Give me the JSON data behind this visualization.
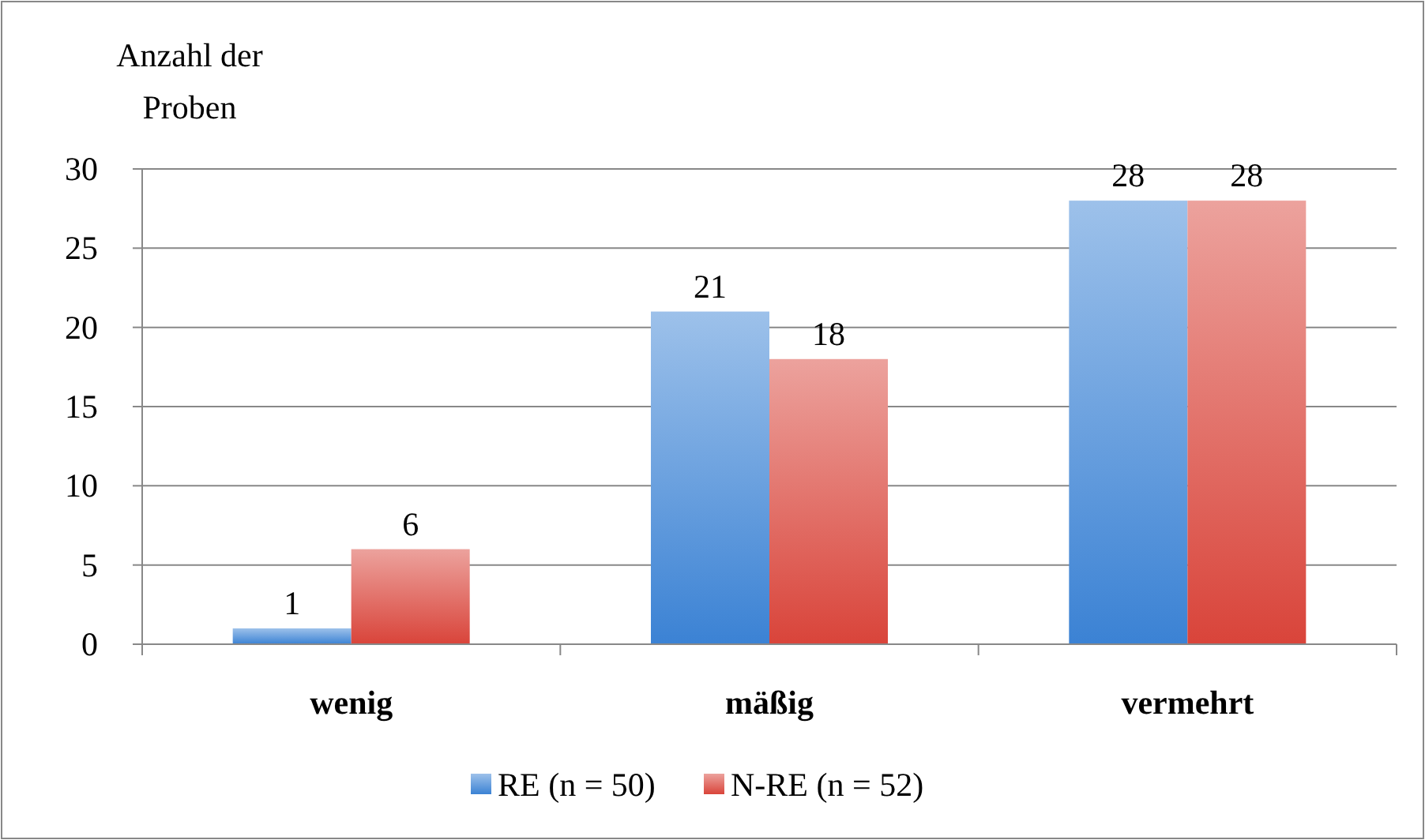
{
  "chart_data": {
    "type": "bar",
    "ylabel": "Anzahl der Proben",
    "categories": [
      "wenig",
      "mäßig",
      "vermehrt"
    ],
    "series": [
      {
        "name": "RE (n = 50)",
        "color": "#3b82d4",
        "values": [
          1,
          21,
          28
        ]
      },
      {
        "name": "N-RE (n = 52)",
        "color": "#d9443a",
        "values": [
          6,
          18,
          28
        ]
      }
    ],
    "ylim": [
      0,
      30
    ],
    "yticks": [
      0,
      5,
      10,
      15,
      20,
      25,
      30
    ],
    "grid": "y",
    "legend": "bottom",
    "data_labels": true
  }
}
